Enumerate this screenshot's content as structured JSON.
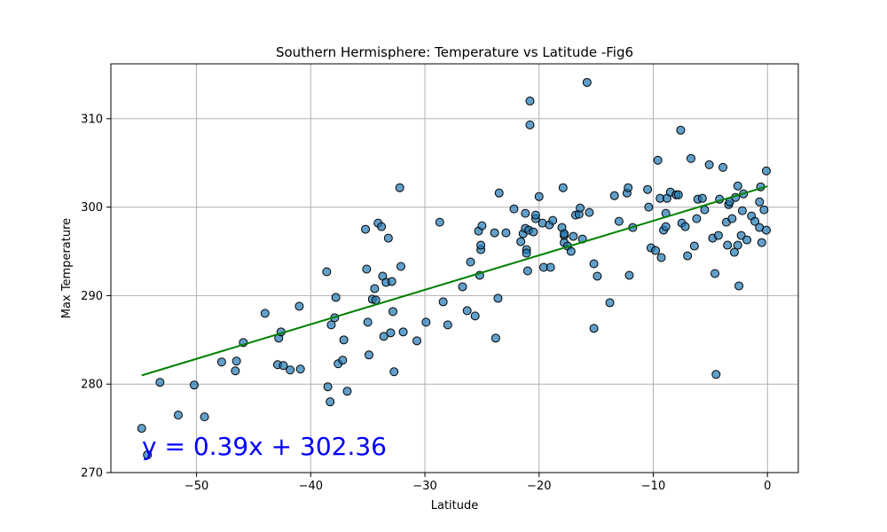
{
  "chart_data": {
    "type": "scatter",
    "title": "Southern Hermisphere: Temperature vs Latitude -Fig6",
    "xlabel": "Latitude",
    "ylabel": "Max Temperature",
    "xlim": [
      -57.5,
      2.7
    ],
    "ylim": [
      270,
      316.2
    ],
    "xticks": [
      -50,
      -40,
      -30,
      -20,
      -10,
      0
    ],
    "yticks": [
      270,
      280,
      290,
      300,
      310
    ],
    "grid": true,
    "colors": {
      "points": "#1f77b4",
      "point_edge": "#000000",
      "regression": "#008000",
      "equation": "#0000ff"
    },
    "regression": {
      "slope": 0.39,
      "intercept": 302.36,
      "x_range": [
        -54.8,
        0
      ],
      "label": "y = 0.39x + 302.36"
    },
    "points": [
      [
        -54.8,
        275.0
      ],
      [
        -54.3,
        272.0
      ],
      [
        -53.2,
        280.2
      ],
      [
        -51.6,
        276.5
      ],
      [
        -50.2,
        279.9
      ],
      [
        -49.3,
        276.3
      ],
      [
        -47.8,
        282.5
      ],
      [
        -46.6,
        281.5
      ],
      [
        -46.5,
        282.6
      ],
      [
        -45.9,
        284.7
      ],
      [
        -44.0,
        288.0
      ],
      [
        -42.9,
        282.2
      ],
      [
        -42.8,
        285.2
      ],
      [
        -42.6,
        285.9
      ],
      [
        -42.4,
        282.1
      ],
      [
        -41.8,
        281.6
      ],
      [
        -41.0,
        288.8
      ],
      [
        -40.9,
        281.7
      ],
      [
        -38.6,
        292.7
      ],
      [
        -38.5,
        279.7
      ],
      [
        -38.3,
        278.0
      ],
      [
        -38.2,
        286.7
      ],
      [
        -37.9,
        287.5
      ],
      [
        -37.8,
        289.8
      ],
      [
        -37.6,
        282.3
      ],
      [
        -37.2,
        282.7
      ],
      [
        -37.1,
        285.0
      ],
      [
        -36.8,
        279.2
      ],
      [
        -35.2,
        297.5
      ],
      [
        -35.1,
        293.0
      ],
      [
        -35.0,
        287.0
      ],
      [
        -34.9,
        283.3
      ],
      [
        -34.6,
        289.6
      ],
      [
        -34.4,
        290.8
      ],
      [
        -34.3,
        289.5
      ],
      [
        -34.1,
        298.2
      ],
      [
        -33.8,
        297.8
      ],
      [
        -33.7,
        292.2
      ],
      [
        -33.6,
        285.4
      ],
      [
        -33.4,
        291.5
      ],
      [
        -33.2,
        296.5
      ],
      [
        -33.0,
        285.8
      ],
      [
        -32.9,
        291.6
      ],
      [
        -32.8,
        288.2
      ],
      [
        -32.7,
        281.4
      ],
      [
        -32.2,
        302.2
      ],
      [
        -32.1,
        293.3
      ],
      [
        -31.9,
        285.9
      ],
      [
        -30.7,
        284.9
      ],
      [
        -29.9,
        287.0
      ],
      [
        -28.7,
        298.3
      ],
      [
        -28.4,
        289.3
      ],
      [
        -28.0,
        286.7
      ],
      [
        -26.7,
        291.0
      ],
      [
        -26.3,
        288.3
      ],
      [
        -26.0,
        293.8
      ],
      [
        -25.6,
        287.7
      ],
      [
        -25.3,
        297.3
      ],
      [
        -25.2,
        292.3
      ],
      [
        -25.1,
        295.2
      ],
      [
        -25.1,
        295.7
      ],
      [
        -25.0,
        297.9
      ],
      [
        -23.9,
        297.1
      ],
      [
        -23.8,
        285.2
      ],
      [
        -23.6,
        289.7
      ],
      [
        -23.5,
        301.6
      ],
      [
        -22.9,
        297.1
      ],
      [
        -22.2,
        299.8
      ],
      [
        -21.6,
        296.1
      ],
      [
        -21.4,
        297.0
      ],
      [
        -21.2,
        299.3
      ],
      [
        -21.2,
        297.6
      ],
      [
        -21.1,
        295.2
      ],
      [
        -21.1,
        294.8
      ],
      [
        -21.0,
        292.8
      ],
      [
        -20.9,
        297.4
      ],
      [
        -20.8,
        309.3
      ],
      [
        -20.8,
        312.0
      ],
      [
        -20.5,
        297.2
      ],
      [
        -20.3,
        298.7
      ],
      [
        -20.3,
        299.1
      ],
      [
        -20.0,
        301.2
      ],
      [
        -19.7,
        298.2
      ],
      [
        -19.6,
        293.2
      ],
      [
        -19.1,
        298.0
      ],
      [
        -19.0,
        293.2
      ],
      [
        -18.8,
        298.5
      ],
      [
        -18.0,
        297.7
      ],
      [
        -17.9,
        302.2
      ],
      [
        -17.8,
        296.8
      ],
      [
        -17.8,
        297.0
      ],
      [
        -17.8,
        296.0
      ],
      [
        -17.5,
        295.6
      ],
      [
        -17.2,
        295.0
      ],
      [
        -17.0,
        296.7
      ],
      [
        -16.8,
        299.1
      ],
      [
        -16.5,
        299.2
      ],
      [
        -16.4,
        299.9
      ],
      [
        -16.2,
        296.4
      ],
      [
        -15.8,
        314.1
      ],
      [
        -15.6,
        299.4
      ],
      [
        -15.2,
        293.6
      ],
      [
        -15.2,
        286.3
      ],
      [
        -14.9,
        292.2
      ],
      [
        -13.8,
        289.2
      ],
      [
        -13.4,
        301.3
      ],
      [
        -13.0,
        298.4
      ],
      [
        -12.3,
        301.6
      ],
      [
        -12.2,
        302.2
      ],
      [
        -12.1,
        292.3
      ],
      [
        -11.8,
        297.7
      ],
      [
        -10.5,
        302.0
      ],
      [
        -10.4,
        300.0
      ],
      [
        -10.2,
        295.4
      ],
      [
        -9.8,
        295.1
      ],
      [
        -9.6,
        305.3
      ],
      [
        -9.4,
        301.0
      ],
      [
        -9.3,
        294.3
      ],
      [
        -9.1,
        297.4
      ],
      [
        -8.9,
        297.8
      ],
      [
        -8.9,
        299.3
      ],
      [
        -8.8,
        301.0
      ],
      [
        -8.5,
        301.7
      ],
      [
        -8.0,
        301.4
      ],
      [
        -7.8,
        301.4
      ],
      [
        -7.6,
        308.7
      ],
      [
        -7.5,
        298.2
      ],
      [
        -7.2,
        297.8
      ],
      [
        -7.0,
        294.5
      ],
      [
        -6.7,
        305.5
      ],
      [
        -6.4,
        295.6
      ],
      [
        -6.2,
        298.7
      ],
      [
        -6.1,
        300.9
      ],
      [
        -5.7,
        301.0
      ],
      [
        -5.5,
        299.7
      ],
      [
        -5.1,
        304.8
      ],
      [
        -4.8,
        296.5
      ],
      [
        -4.6,
        292.5
      ],
      [
        -4.5,
        281.1
      ],
      [
        -4.3,
        296.8
      ],
      [
        -4.2,
        300.9
      ],
      [
        -3.9,
        304.5
      ],
      [
        -3.6,
        298.3
      ],
      [
        -3.5,
        295.7
      ],
      [
        -3.4,
        300.3
      ],
      [
        -3.3,
        300.6
      ],
      [
        -3.1,
        298.7
      ],
      [
        -2.9,
        294.9
      ],
      [
        -2.8,
        301.1
      ],
      [
        -2.6,
        302.4
      ],
      [
        -2.6,
        295.7
      ],
      [
        -2.5,
        291.1
      ],
      [
        -2.3,
        296.8
      ],
      [
        -2.2,
        299.6
      ],
      [
        -2.1,
        301.5
      ],
      [
        -1.8,
        296.3
      ],
      [
        -1.4,
        299.0
      ],
      [
        -1.1,
        298.4
      ],
      [
        -0.7,
        300.6
      ],
      [
        -0.7,
        297.7
      ],
      [
        -0.6,
        302.3
      ],
      [
        -0.5,
        296.0
      ],
      [
        -0.3,
        299.7
      ],
      [
        -0.1,
        304.1
      ],
      [
        -0.1,
        297.4
      ]
    ]
  }
}
